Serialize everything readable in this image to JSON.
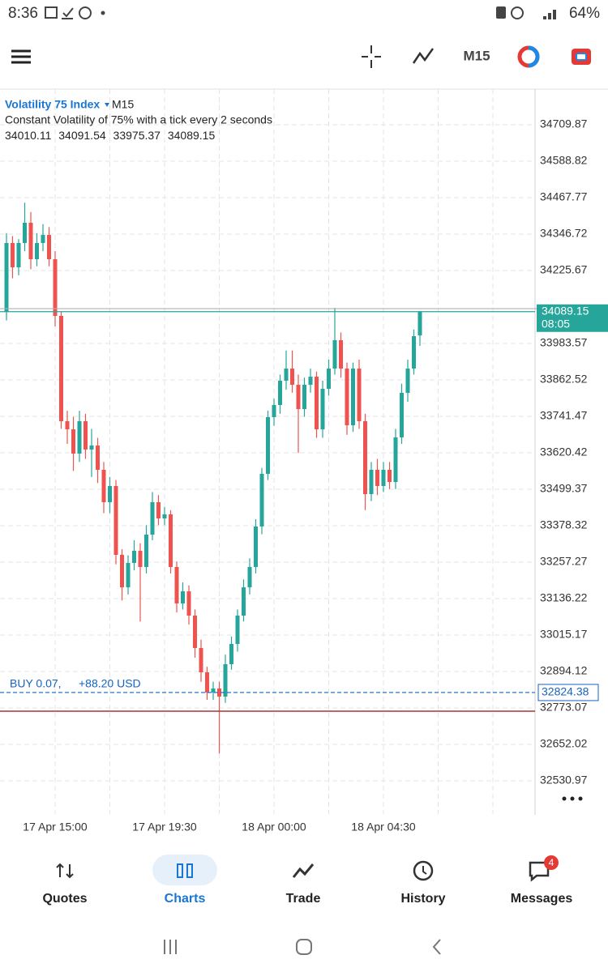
{
  "status_bar": {
    "time": "8:36",
    "battery": "64%"
  },
  "app_bar": {
    "timeframe": "M15"
  },
  "chart_header": {
    "symbol": "Volatility 75 Index",
    "timeframe": "M15",
    "description": "Constant Volatility of 75% with a tick every 2 seconds"
  },
  "chart_data": {
    "type": "candlestick",
    "x_labels": [
      "17 Apr 15:00",
      "17 Apr 19:30",
      "18 Apr 00:00",
      "18 Apr 04:30"
    ],
    "ylim": [
      32420.7,
      34828.2
    ],
    "yticks": [
      34709.87,
      34588.82,
      34467.77,
      34346.72,
      34225.67,
      33983.57,
      33862.52,
      33741.47,
      33620.42,
      33499.37,
      33378.32,
      33257.27,
      33136.22,
      33015.17,
      32894.12,
      32773.07,
      32652.02,
      32530.97
    ],
    "grid": true,
    "up_color": "#26a69a",
    "down_color": "#ef5350",
    "candles": [
      [
        34088.4,
        34350,
        34060,
        34317.1
      ],
      [
        34317.1,
        34340,
        34200,
        34236.4
      ],
      [
        34236.4,
        34330,
        34210,
        34317.1
      ],
      [
        34317.1,
        34451,
        34290,
        34384.3
      ],
      [
        34384.3,
        34420,
        34230,
        34263.3
      ],
      [
        34263.3,
        34350,
        34240,
        34317.1
      ],
      [
        34317.1,
        34380,
        34290,
        34343.9
      ],
      [
        34343.9,
        34370,
        34240,
        34263.3
      ],
      [
        34263.3,
        34290,
        34040,
        34075.0
      ],
      [
        34075.0,
        34090,
        33700,
        33725.3
      ],
      [
        33725.3,
        33760,
        33650,
        33698.4
      ],
      [
        33698.4,
        33740,
        33560,
        33617.7
      ],
      [
        33617.7,
        33760,
        33590,
        33725.3
      ],
      [
        33725.3,
        33750,
        33600,
        33631.2
      ],
      [
        33631.2,
        33700,
        33540,
        33644.6
      ],
      [
        33644.6,
        33670,
        33520,
        33563.9
      ],
      [
        33563.9,
        33590,
        33420,
        33456.3
      ],
      [
        33456.3,
        33540,
        33420,
        33510.1
      ],
      [
        33510.1,
        33530,
        33250,
        33281.5
      ],
      [
        33281.5,
        33300,
        33130,
        33173.6
      ],
      [
        33173.6,
        33280,
        33150,
        33254.6
      ],
      [
        33254.6,
        33330,
        33230,
        33294.9
      ],
      [
        33294.9,
        33320,
        33060,
        33241.1
      ],
      [
        33241.1,
        33380,
        33220,
        33348.7
      ],
      [
        33348.7,
        33490,
        33330,
        33456.3
      ],
      [
        33456.3,
        33480,
        33380,
        33402.5
      ],
      [
        33402.5,
        33440,
        33380,
        33416.0
      ],
      [
        33416.0,
        33430,
        33220,
        33241.1
      ],
      [
        33241.1,
        33260,
        33090,
        33120.0
      ],
      [
        33120.0,
        33190,
        33100,
        33160.4
      ],
      [
        33160.4,
        33180,
        33050,
        33079.7
      ],
      [
        33079.7,
        33100,
        32940,
        32972.1
      ],
      [
        32972.1,
        33000,
        32860,
        32891.4
      ],
      [
        32891.4,
        32910,
        32800,
        32824.2
      ],
      [
        32824.2,
        32860,
        32800,
        32837.6
      ],
      [
        32837.6,
        32860,
        32622,
        32810.7
      ],
      [
        32810.7,
        32950,
        32790,
        32918.3
      ],
      [
        32918.3,
        33010,
        32900,
        32985.6
      ],
      [
        32985.6,
        33100,
        32960,
        33079.7
      ],
      [
        33079.7,
        33200,
        33060,
        33173.6
      ],
      [
        33173.6,
        33270,
        33150,
        33241.1
      ],
      [
        33241.1,
        33400,
        33220,
        33375.6
      ],
      [
        33375.6,
        33570,
        33350,
        33550.5
      ],
      [
        33550.5,
        33760,
        33530,
        33738.8
      ],
      [
        33738.8,
        33800,
        33710,
        33779.1
      ],
      [
        33779.1,
        33880,
        33750,
        33859.8
      ],
      [
        33859.8,
        33960,
        33830,
        33900.1
      ],
      [
        33900.1,
        33960,
        33820,
        33846.3
      ],
      [
        33846.3,
        33880,
        33620,
        33765.6
      ],
      [
        33765.6,
        33870,
        33740,
        33846.3
      ],
      [
        33846.3,
        33900,
        33820,
        33873.2
      ],
      [
        33873.2,
        33890,
        33670,
        33698.4
      ],
      [
        33698.4,
        33860,
        33670,
        33832.9
      ],
      [
        33832.9,
        33930,
        33810,
        33900.1
      ],
      [
        33900.1,
        34102,
        33880,
        33994.3
      ],
      [
        33994.3,
        34020,
        33870,
        33900.1
      ],
      [
        33900.1,
        33920,
        33680,
        33711.8
      ],
      [
        33711.8,
        33920,
        33690,
        33900.1
      ],
      [
        33900.1,
        33930,
        33700,
        33725.3
      ],
      [
        33725.3,
        33750,
        33430,
        33483.2
      ],
      [
        33483.2,
        33590,
        33460,
        33563.9
      ],
      [
        33563.9,
        33600,
        33480,
        33510.1
      ],
      [
        33510.1,
        33590,
        33490,
        33563.9
      ],
      [
        33563.9,
        33590,
        33500,
        33523.5
      ],
      [
        33523.5,
        33700,
        33500,
        33671.5
      ],
      [
        33671.5,
        33850,
        33650,
        33819.5
      ],
      [
        33819.5,
        33930,
        33790,
        33900.1
      ],
      [
        33900.1,
        34030,
        33880,
        34007.7
      ],
      [
        34010.11,
        34091.54,
        33975.37,
        34089.15
      ]
    ],
    "ask_line": 34099,
    "timer": "08:05",
    "position": {
      "label": "BUY 0.07,",
      "profit": "+88.20 USD",
      "price": 32824.38
    },
    "stop_line": 32762.3
  },
  "nav": {
    "items": [
      "Quotes",
      "Charts",
      "Trade",
      "History",
      "Messages"
    ],
    "active": "Charts",
    "badge": "4"
  }
}
